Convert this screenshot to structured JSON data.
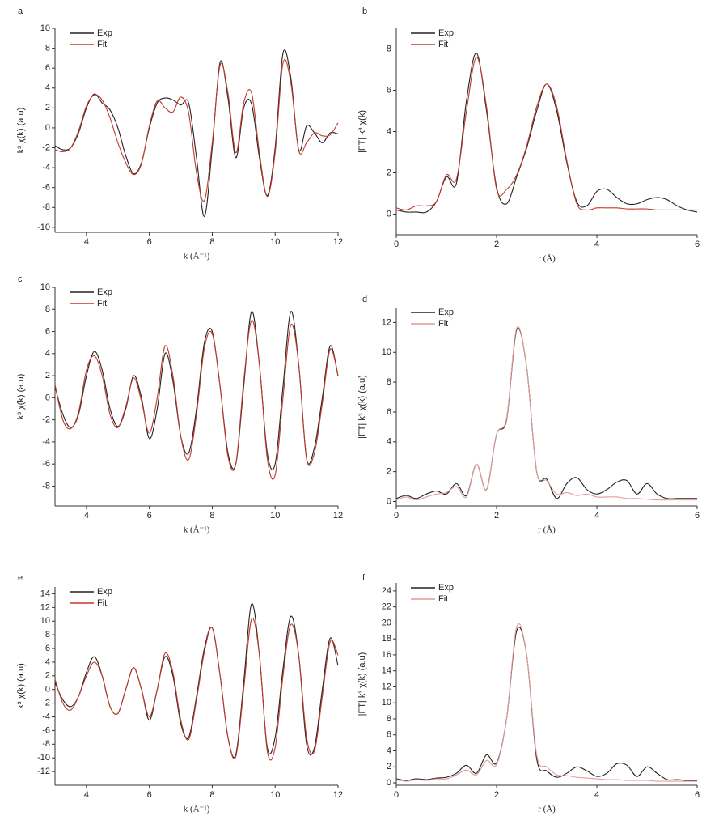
{
  "chart_data": [
    {
      "type": "line",
      "label": "a",
      "xlabel": "k (Å⁻¹)",
      "ylabel": "k³ χ(k) (a.u)",
      "x": [
        3,
        3.25,
        3.5,
        3.75,
        4,
        4.25,
        4.5,
        4.75,
        5,
        5.25,
        5.5,
        5.75,
        6,
        6.25,
        6.5,
        6.75,
        7,
        7.25,
        7.5,
        7.75,
        8,
        8.25,
        8.5,
        8.75,
        9,
        9.25,
        9.5,
        9.75,
        10,
        10.25,
        10.5,
        10.75,
        11,
        11.25,
        11.5,
        11.75,
        12
      ],
      "series": [
        {
          "name": "Exp",
          "color": "#222222",
          "values": [
            -1.8,
            -2.2,
            -2,
            -0.5,
            2,
            3.4,
            2.5,
            1.8,
            0,
            -2.8,
            -4.6,
            -3.5,
            0,
            2.5,
            3,
            2.8,
            2.3,
            2.5,
            -3,
            -8.9,
            -2,
            6.6,
            3,
            -3,
            2,
            2.4,
            -3,
            -6.8,
            -2,
            7.5,
            5,
            -2.2,
            0.2,
            -0.5,
            -1.5,
            -0.5,
            -0.6
          ]
        },
        {
          "name": "Fit",
          "color": "#c0392b",
          "values": [
            -2.2,
            -2.4,
            -2,
            -0.3,
            2.2,
            3.3,
            2.8,
            1,
            -1.5,
            -3.5,
            -4.7,
            -3.6,
            0.2,
            2.7,
            2,
            1.6,
            3.1,
            1.5,
            -4.5,
            -7.3,
            -1.5,
            6.3,
            3.5,
            -2.5,
            2.5,
            3.5,
            -2.5,
            -6.9,
            -2.5,
            6.5,
            4.5,
            -2.3,
            -1.5,
            -0.5,
            -0.8,
            -0.7,
            0.5
          ]
        }
      ],
      "xlim": [
        3,
        12
      ],
      "ylim": [
        -10.5,
        10
      ],
      "xticks": [
        4,
        6,
        8,
        10,
        12
      ],
      "yticks": [
        -10,
        -8,
        -6,
        -4,
        -2,
        0,
        2,
        4,
        6,
        8,
        10
      ]
    },
    {
      "type": "line",
      "label": "b",
      "xlabel": "r (Å)",
      "ylabel": "|FT| k³ χ(k)",
      "x": [
        0,
        0.2,
        0.4,
        0.6,
        0.8,
        1,
        1.2,
        1.4,
        1.6,
        1.8,
        2,
        2.2,
        2.4,
        2.6,
        2.8,
        3,
        3.2,
        3.4,
        3.6,
        3.8,
        4,
        4.2,
        4.4,
        4.6,
        4.8,
        5,
        5.2,
        5.4,
        5.6,
        5.8,
        6
      ],
      "series": [
        {
          "name": "Exp",
          "color": "#222222",
          "values": [
            0.2,
            0.1,
            0.1,
            0.1,
            0.6,
            1.8,
            1.5,
            5.5,
            7.8,
            5,
            1.3,
            0.5,
            1.8,
            3.2,
            5,
            6.3,
            5,
            2.5,
            0.6,
            0.4,
            1.1,
            1.2,
            0.8,
            0.5,
            0.5,
            0.7,
            0.8,
            0.7,
            0.4,
            0.2,
            0.1
          ]
        },
        {
          "name": "Fit",
          "color": "#c0392b",
          "values": [
            0.3,
            0.2,
            0.4,
            0.4,
            0.6,
            1.9,
            1.7,
            5,
            7.6,
            5.2,
            1.2,
            1.2,
            1.9,
            3.3,
            5.2,
            6.3,
            5.2,
            2.6,
            0.5,
            0.2,
            0.3,
            0.3,
            0.3,
            0.25,
            0.25,
            0.25,
            0.2,
            0.2,
            0.2,
            0.2,
            0.2
          ]
        }
      ],
      "xlim": [
        0,
        6
      ],
      "ylim": [
        -1,
        9
      ],
      "xticks": [
        0,
        2,
        4,
        6
      ],
      "yticks": [
        0,
        2,
        4,
        6,
        8
      ]
    },
    {
      "type": "line",
      "label": "c",
      "xlabel": "k (Å⁻¹)",
      "ylabel": "k³ χ(k) (a.u)",
      "x": [
        3,
        3.25,
        3.5,
        3.75,
        4,
        4.25,
        4.5,
        4.75,
        5,
        5.25,
        5.5,
        5.75,
        6,
        6.25,
        6.5,
        6.75,
        7,
        7.25,
        7.5,
        7.75,
        8,
        8.25,
        8.5,
        8.75,
        9,
        9.25,
        9.5,
        9.75,
        10,
        10.25,
        10.5,
        10.75,
        11,
        11.25,
        11.5,
        11.75,
        12
      ],
      "series": [
        {
          "name": "Exp",
          "color": "#222222",
          "values": [
            1,
            -1.5,
            -2.7,
            -1.5,
            2,
            4.2,
            2.5,
            -1,
            -2.6,
            -1,
            2,
            0,
            -3.7,
            -1,
            4,
            1.5,
            -3.5,
            -5,
            -1,
            5,
            6,
            1,
            -5,
            -6,
            1,
            7.8,
            3,
            -5,
            -6,
            1,
            7.8,
            3,
            -5.5,
            -4.5,
            0,
            4.7,
            2
          ]
        },
        {
          "name": "Fit",
          "color": "#c0392b",
          "values": [
            1.2,
            -2,
            -2.8,
            -1.3,
            2.5,
            3.8,
            2,
            -1.5,
            -2.7,
            -0.8,
            1.8,
            -0.3,
            -3.2,
            0,
            4.7,
            2,
            -3.5,
            -5.6,
            -1.5,
            4.5,
            5.8,
            1,
            -5.3,
            -6,
            1.5,
            7,
            3,
            -5.5,
            -7,
            0,
            6.6,
            3,
            -5.5,
            -5,
            -0.5,
            4.4,
            2
          ]
        }
      ],
      "xlim": [
        3,
        12
      ],
      "ylim": [
        -9.8,
        10
      ],
      "xticks": [
        4,
        6,
        8,
        10,
        12
      ],
      "yticks": [
        -8,
        -6,
        -4,
        -2,
        0,
        2,
        4,
        6,
        8,
        10
      ]
    },
    {
      "type": "line",
      "label": "d",
      "xlabel": "r (Å)",
      "ylabel": "|FT| k³ χ(k) (a.u)",
      "x": [
        0,
        0.2,
        0.4,
        0.6,
        0.8,
        1,
        1.2,
        1.4,
        1.6,
        1.8,
        2,
        2.2,
        2.4,
        2.6,
        2.8,
        3,
        3.2,
        3.4,
        3.6,
        3.8,
        4,
        4.2,
        4.4,
        4.6,
        4.8,
        5,
        5.2,
        5.4,
        5.6,
        5.8,
        6
      ],
      "series": [
        {
          "name": "Exp",
          "color": "#222222",
          "values": [
            0.2,
            0.4,
            0.2,
            0.5,
            0.7,
            0.5,
            1.2,
            0.4,
            2.5,
            0.8,
            4.5,
            5.5,
            11.5,
            9,
            2,
            1.5,
            0.2,
            1.2,
            1.6,
            0.8,
            0.5,
            0.8,
            1.3,
            1.4,
            0.5,
            1.2,
            0.5,
            0.2,
            0.2,
            0.2,
            0.2
          ]
        },
        {
          "name": "Fit",
          "color": "#e39a9a",
          "values": [
            0.1,
            0.3,
            0.1,
            0.3,
            0.5,
            0.6,
            1,
            0.3,
            2.5,
            0.8,
            4.5,
            5.6,
            11.6,
            9,
            2,
            1.4,
            0.5,
            0.6,
            0.4,
            0.5,
            0.3,
            0.3,
            0.3,
            0.2,
            0.2,
            0.15,
            0.1,
            0.1,
            0.1,
            0.1,
            0.1
          ]
        }
      ],
      "xlim": [
        0,
        6
      ],
      "ylim": [
        -0.3,
        13
      ],
      "xticks": [
        0,
        2,
        4,
        6
      ],
      "yticks": [
        0,
        2,
        4,
        6,
        8,
        10,
        12
      ]
    },
    {
      "type": "line",
      "label": "e",
      "xlabel": "k (Å⁻¹)",
      "ylabel": "k³ χ(k) (a.u)",
      "x": [
        3,
        3.25,
        3.5,
        3.75,
        4,
        4.25,
        4.5,
        4.75,
        5,
        5.25,
        5.5,
        5.75,
        6,
        6.25,
        6.5,
        6.75,
        7,
        7.25,
        7.5,
        7.75,
        8,
        8.25,
        8.5,
        8.75,
        9,
        9.25,
        9.5,
        9.75,
        10,
        10.25,
        10.5,
        10.75,
        11,
        11.25,
        11.5,
        11.75,
        12
      ],
      "series": [
        {
          "name": "Exp",
          "color": "#222222",
          "values": [
            1,
            -1.5,
            -2.5,
            -1,
            2.5,
            4.8,
            2,
            -2.5,
            -3.5,
            0,
            3.2,
            0,
            -4.5,
            0,
            4.8,
            2,
            -5,
            -7,
            -1,
            6,
            9,
            2,
            -7,
            -9.5,
            1,
            12.5,
            5,
            -8.5,
            -7,
            3,
            10.7,
            5,
            -8,
            -8.5,
            0,
            7.5,
            3.5
          ]
        },
        {
          "name": "Fit",
          "color": "#c0392b",
          "values": [
            1.5,
            -2,
            -3,
            -1,
            2,
            4,
            2,
            -2.5,
            -3.5,
            0,
            3.2,
            0,
            -4,
            0,
            5.3,
            2.5,
            -4.5,
            -7.3,
            -1.5,
            5.5,
            9,
            2,
            -7,
            -9.8,
            0,
            10.3,
            5,
            -9,
            -8.5,
            2,
            9.5,
            5,
            -7,
            -9,
            -1,
            7,
            5
          ]
        }
      ],
      "xlim": [
        3,
        12
      ],
      "ylim": [
        -14,
        15
      ],
      "xticks": [
        4,
        6,
        8,
        10,
        12
      ],
      "yticks": [
        -12,
        -10,
        -8,
        -6,
        -4,
        -2,
        0,
        2,
        4,
        6,
        8,
        10,
        12,
        14
      ]
    },
    {
      "type": "line",
      "label": "f",
      "xlabel": "r (Å)",
      "ylabel": "|FT| k³ χ(k) (a.u)",
      "x": [
        0,
        0.2,
        0.4,
        0.6,
        0.8,
        1,
        1.2,
        1.4,
        1.6,
        1.8,
        2,
        2.2,
        2.4,
        2.6,
        2.8,
        3,
        3.2,
        3.4,
        3.6,
        3.8,
        4,
        4.2,
        4.4,
        4.6,
        4.8,
        5,
        5.2,
        5.4,
        5.6,
        5.8,
        6
      ],
      "series": [
        {
          "name": "Exp",
          "color": "#222222",
          "values": [
            0.5,
            0.3,
            0.5,
            0.4,
            0.6,
            0.7,
            1.2,
            2.2,
            1.2,
            3.5,
            2.5,
            8,
            19,
            16,
            3,
            1.5,
            0.7,
            1.2,
            2,
            1.5,
            0.8,
            1.2,
            2.4,
            2.2,
            0.8,
            2,
            1.2,
            0.4,
            0.4,
            0.3,
            0.3
          ]
        },
        {
          "name": "Fit",
          "color": "#e39a9a",
          "values": [
            0.4,
            0.2,
            0.4,
            0.3,
            0.5,
            0.5,
            1,
            1.6,
            1,
            2.8,
            2.3,
            8,
            19.5,
            16,
            3.5,
            2,
            1,
            0.9,
            0.7,
            0.6,
            0.5,
            0.4,
            0.4,
            0.3,
            0.3,
            0.3,
            0.2,
            0.2,
            0.2,
            0.2,
            0.2
          ]
        }
      ],
      "xlim": [
        0,
        6
      ],
      "ylim": [
        -0.3,
        25
      ],
      "xticks": [
        0,
        2,
        4,
        6
      ],
      "yticks": [
        0,
        2,
        4,
        6,
        8,
        10,
        12,
        14,
        16,
        18,
        20,
        22,
        24
      ]
    }
  ]
}
